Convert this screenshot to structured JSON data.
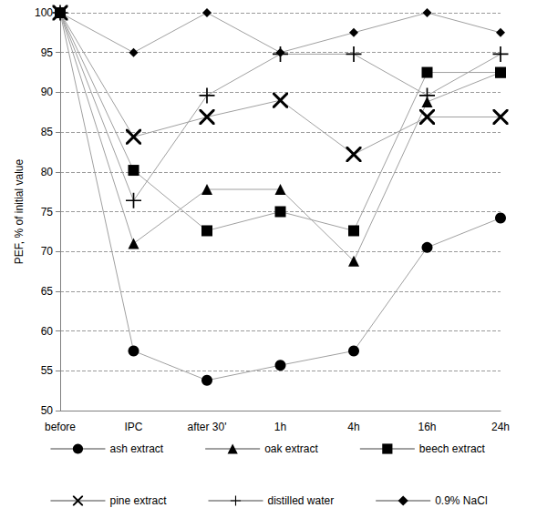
{
  "chart_data": {
    "type": "line",
    "y_label": "PEF, % of initial value",
    "categories": [
      "before",
      "IPC",
      "after 30'",
      "1h",
      "4h",
      "16h",
      "24h"
    ],
    "series": [
      {
        "name": "ash extract",
        "color": "#000000",
        "marker": "circle",
        "values": [
          100,
          57.5,
          53.8,
          55.7,
          57.5,
          70.5,
          74.2
        ]
      },
      {
        "name": "oak extract",
        "color": "#000000",
        "marker": "triangle",
        "values": [
          100,
          71,
          77.8,
          77.8,
          68.8,
          88.8,
          92.5
        ]
      },
      {
        "name": "beech extract",
        "color": "#000000",
        "marker": "square",
        "values": [
          100,
          80.2,
          72.6,
          75,
          72.6,
          92.5,
          92.5
        ]
      },
      {
        "name": "pine extract",
        "color": "#000000",
        "marker": "x",
        "values": [
          100,
          84.4,
          86.9,
          89,
          82.2,
          86.9,
          86.9
        ]
      },
      {
        "name": "distilled water",
        "color": "#000000",
        "marker": "plus",
        "values": [
          100,
          76.4,
          89.6,
          94.8,
          94.8,
          89.6,
          94.8
        ]
      },
      {
        "name": "0.9% NaCl",
        "color": "#000000",
        "marker": "diamond",
        "values": [
          100,
          95,
          100,
          95,
          97.5,
          100,
          97.5
        ]
      }
    ],
    "ylim": [
      50,
      100
    ],
    "yticks": [
      50,
      55,
      60,
      65,
      70,
      75,
      80,
      85,
      90,
      95,
      100
    ],
    "grid": true,
    "legend": "bottom"
  }
}
